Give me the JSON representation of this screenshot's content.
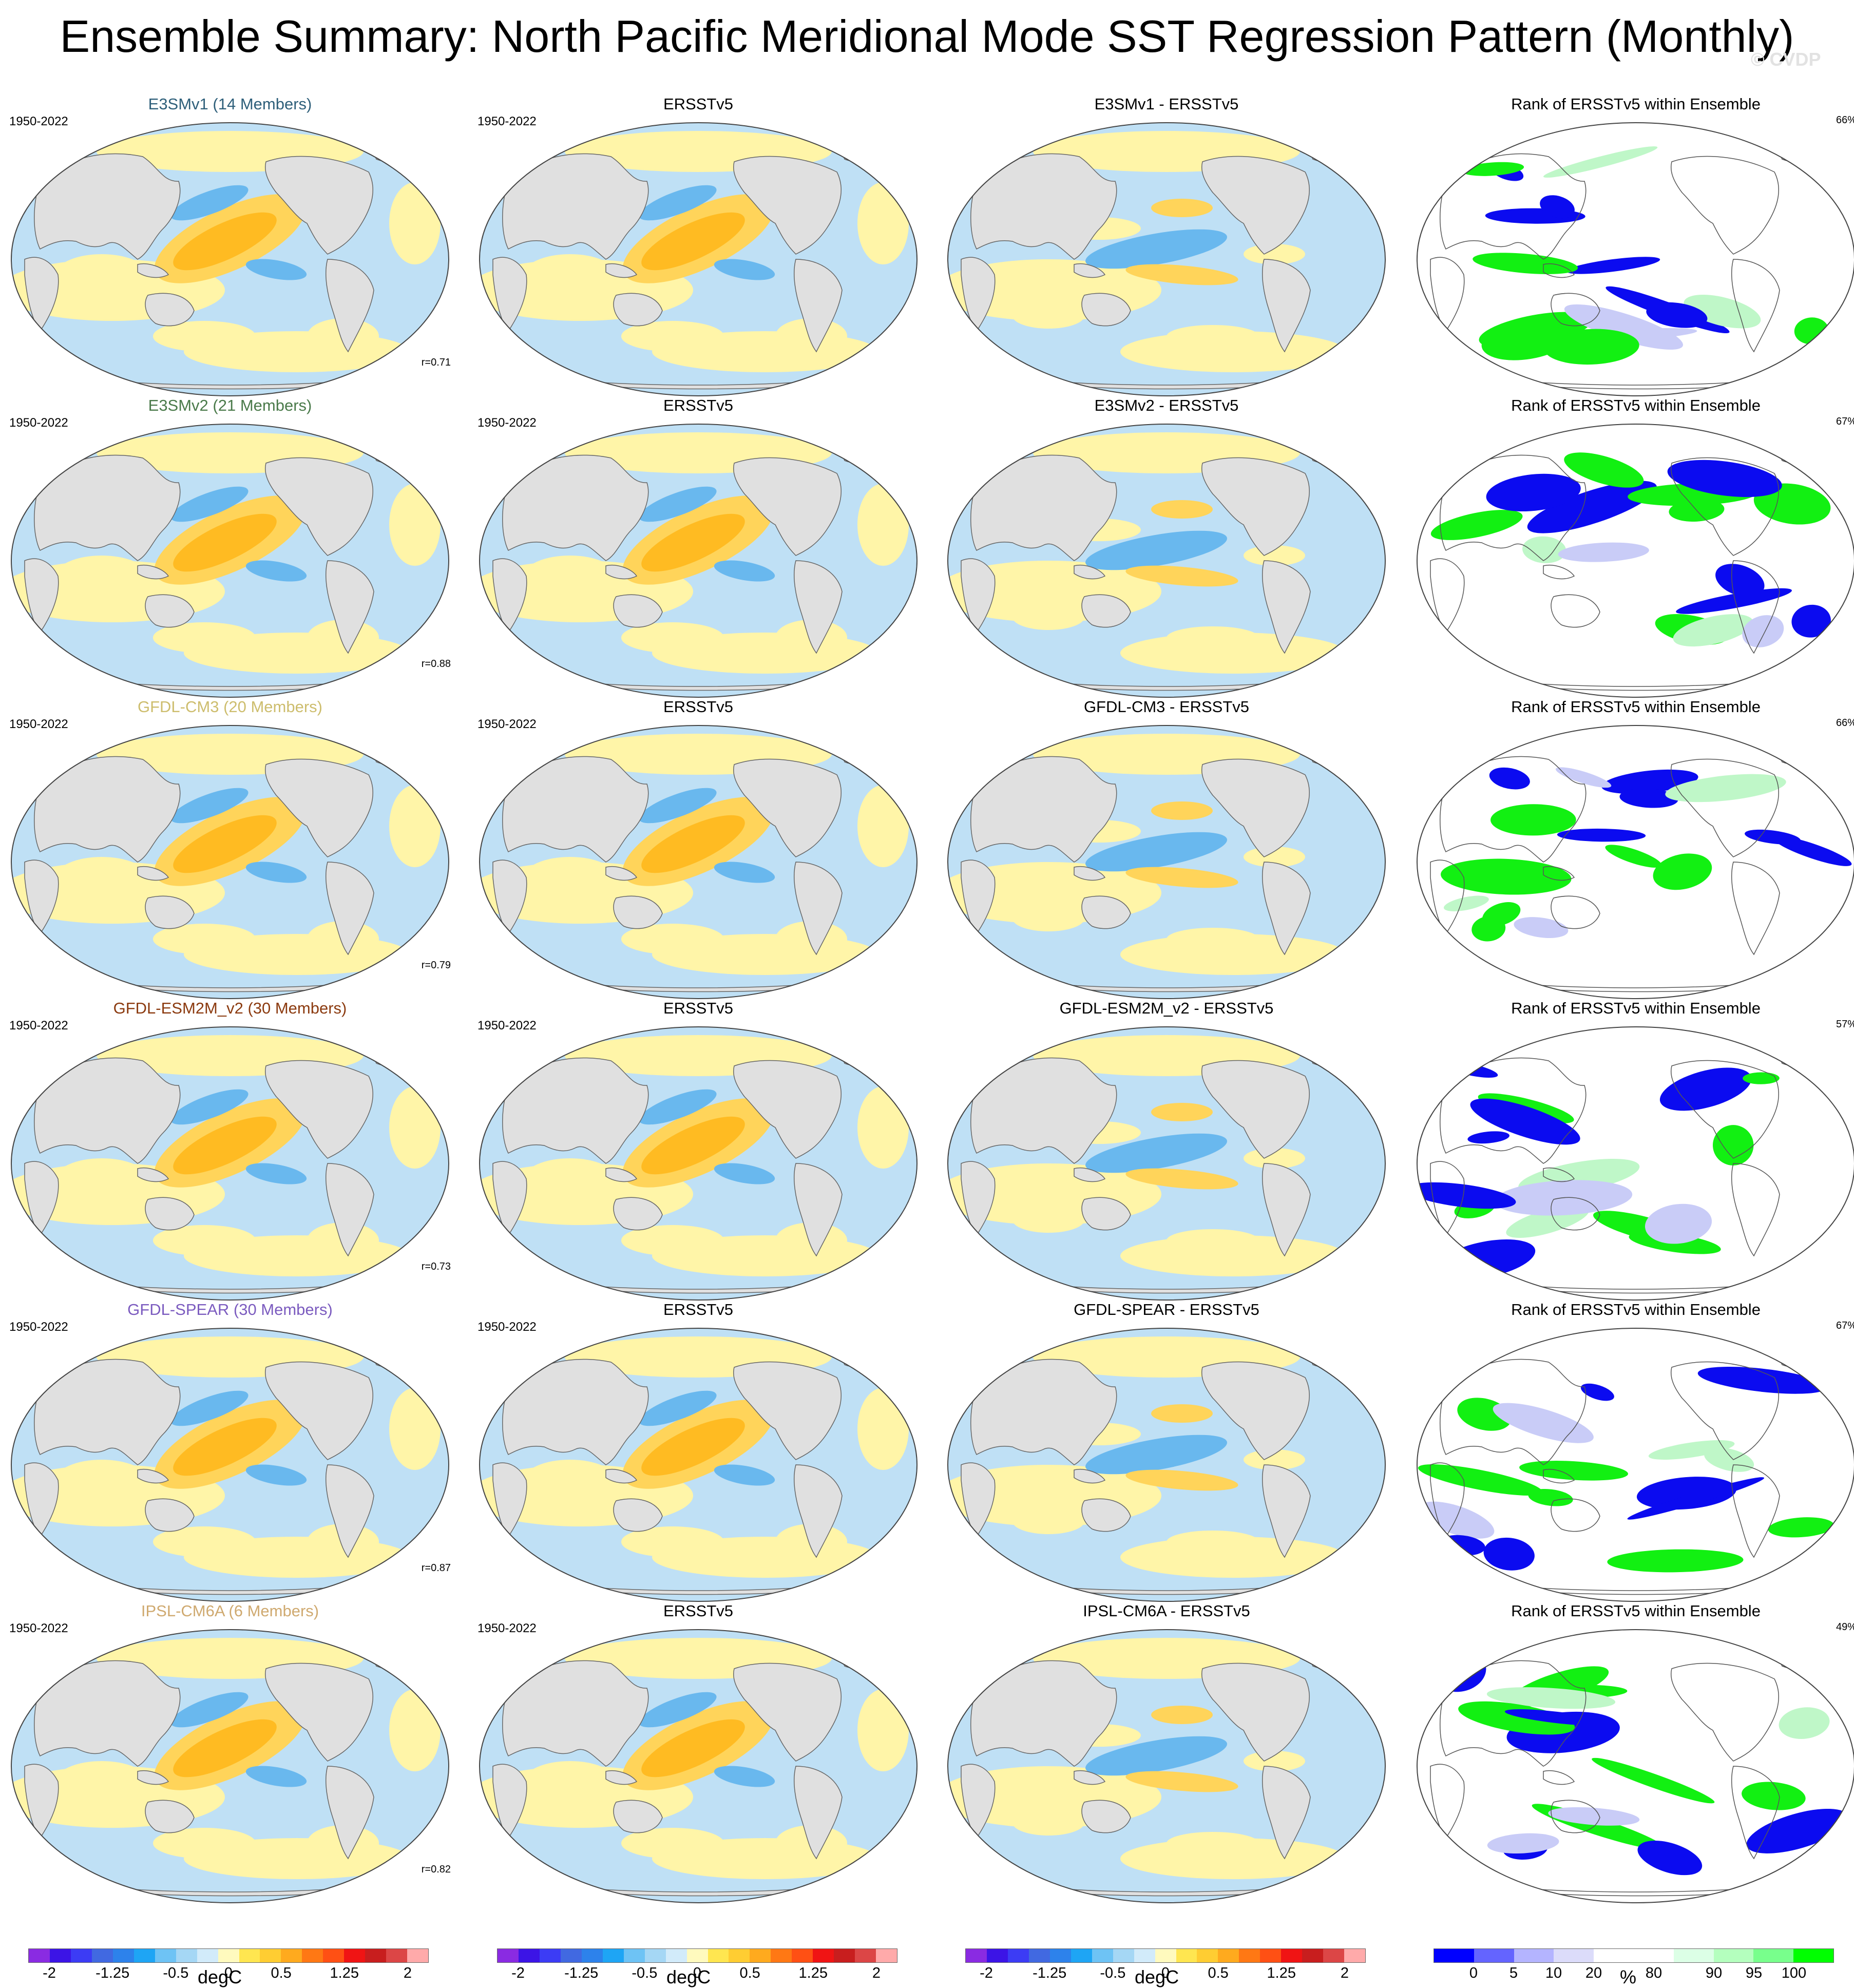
{
  "title": "Ensemble Summary: North Pacific Meridional Mode SST Regression Pattern (Monthly)",
  "watermark": "© CVDP",
  "years": "1950-2022",
  "colors": {
    "ocean_blue": "#bfe0f5",
    "ocean_yellow": "#fff5a8",
    "land": "#e0e0e0",
    "blue_mid": "#69b8ee",
    "blue_deep": "#2d93e6",
    "orange_light": "#ffd45a",
    "orange": "#ffbb22",
    "rank_blue": "#0b0bf0",
    "rank_green": "#12f012",
    "rank_lightgreen": "#bff7c8",
    "rank_lightblue": "#c9ccf7"
  },
  "rows": [
    {
      "model": "E3SMv1 (14 Members)",
      "model_color": "#2e5f7a",
      "obs_title": "ERSSTv5",
      "diff_title": "E3SMv1 - ERSSTv5",
      "rank_title": "Rank of ERSSTv5 within Ensemble",
      "rank_pct": "66%",
      "corr": "r=0.71"
    },
    {
      "model": "E3SMv2 (21 Members)",
      "model_color": "#4a7a4a",
      "obs_title": "ERSSTv5",
      "diff_title": "E3SMv2 - ERSSTv5",
      "rank_title": "Rank of ERSSTv5 within Ensemble",
      "rank_pct": "67%",
      "corr": "r=0.88"
    },
    {
      "model": "GFDL-CM3 (20 Members)",
      "model_color": "#cdbd6d",
      "obs_title": "ERSSTv5",
      "diff_title": "GFDL-CM3 - ERSSTv5",
      "rank_title": "Rank of ERSSTv5 within Ensemble",
      "rank_pct": "66%",
      "corr": "r=0.79"
    },
    {
      "model": "GFDL-ESM2M_v2 (30 Members)",
      "model_color": "#8b3a0f",
      "obs_title": "ERSSTv5",
      "diff_title": "GFDL-ESM2M_v2 - ERSSTv5",
      "rank_title": "Rank of ERSSTv5 within Ensemble",
      "rank_pct": "57%",
      "corr": "r=0.73"
    },
    {
      "model": "GFDL-SPEAR (30 Members)",
      "model_color": "#7b5bbf",
      "obs_title": "ERSSTv5",
      "diff_title": "GFDL-SPEAR - ERSSTv5",
      "rank_title": "Rank of ERSSTv5 within Ensemble",
      "rank_pct": "67%",
      "corr": "r=0.87"
    },
    {
      "model": "IPSL-CM6A (6 Members)",
      "model_color": "#cfa96f",
      "obs_title": "ERSSTv5",
      "diff_title": "IPSL-CM6A - ERSSTv5",
      "rank_title": "Rank of ERSSTv5 within Ensemble",
      "rank_pct": "49%",
      "corr": "r=0.82"
    }
  ],
  "colorbar_sst": {
    "colors": [
      "#8a2be2",
      "#3c14e6",
      "#3c3cf5",
      "#4169e1",
      "#2d82eb",
      "#1ea5f5",
      "#6ec3f5",
      "#a5d7f5",
      "#d2ebfa",
      "#fffabe",
      "#ffe650",
      "#ffcd32",
      "#ffaa1e",
      "#ff7814",
      "#ff5014",
      "#f01414",
      "#c81e1e",
      "#dc4646",
      "#ffaaaa"
    ],
    "ticks": [
      "-2",
      "-1.25",
      "-0.5",
      "0",
      "0.5",
      "1.25",
      "2"
    ],
    "unit": "degC"
  },
  "colorbar_rank": {
    "colors": [
      "#0000ff",
      "#6464ff",
      "#b4b4ff",
      "#dcdcfa",
      "#ffffff",
      "#ffffff",
      "#dcffe6",
      "#b4ffbe",
      "#78ff8c",
      "#00ff00"
    ],
    "ticks": [
      "0",
      "5",
      "10",
      "20",
      "80",
      "90",
      "95",
      "100"
    ],
    "unit": "%"
  }
}
